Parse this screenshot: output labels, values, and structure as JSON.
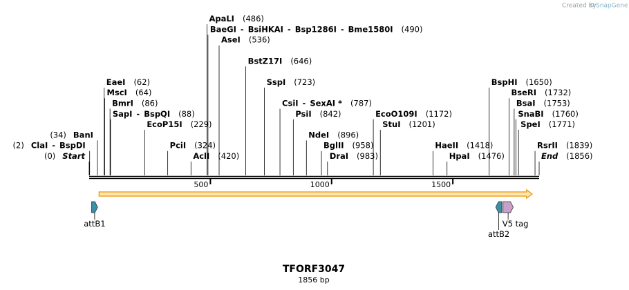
{
  "watermark": {
    "prefix": "Created by",
    "brand": "SnapGene"
  },
  "map": {
    "title": "TFORF3047",
    "length_label": "1856 bp",
    "length": 1856,
    "ticks": [
      {
        "value": 500,
        "label": "500"
      },
      {
        "value": 1000,
        "label": "1000"
      },
      {
        "value": 1500,
        "label": "1500"
      }
    ],
    "orf": {
      "start": 41,
      "end": 1827,
      "fill": "#ffe7b3",
      "stroke": "#f0a020"
    },
    "enzymes": [
      {
        "names": [
          "Start"
        ],
        "pos": "(0)",
        "at": 0,
        "row": 0,
        "side": "left",
        "italic": true
      },
      {
        "names": [
          "ClaI",
          "BspDI"
        ],
        "pos": "(2)",
        "at": 2,
        "row": 1,
        "side": "left"
      },
      {
        "names": [
          "BanI"
        ],
        "pos": "(34)",
        "at": 34,
        "row": 2,
        "side": "left"
      },
      {
        "names": [
          "EaeI"
        ],
        "pos": "(62)",
        "at": 62,
        "row": 7,
        "side": "right"
      },
      {
        "names": [
          "MscI"
        ],
        "pos": "(64)",
        "at": 64,
        "row": 6,
        "side": "right"
      },
      {
        "names": [
          "BmrI"
        ],
        "pos": "(86)",
        "at": 86,
        "row": 5,
        "side": "right"
      },
      {
        "names": [
          "SapI",
          "BspQI"
        ],
        "pos": "(88)",
        "at": 88,
        "row": 4,
        "side": "right"
      },
      {
        "names": [
          "EcoP15I"
        ],
        "pos": "(229)",
        "at": 229,
        "row": 3,
        "side": "right"
      },
      {
        "names": [
          "PciI"
        ],
        "pos": "(324)",
        "at": 324,
        "row": 1,
        "side": "right"
      },
      {
        "names": [
          "AclI"
        ],
        "pos": "(420)",
        "at": 420,
        "row": 0,
        "side": "right"
      },
      {
        "names": [
          "ApaLI"
        ],
        "pos": "(486)",
        "at": 486,
        "row": 13,
        "side": "right"
      },
      {
        "names": [
          "BaeGI",
          "BsiHKAI",
          "Bsp1286I",
          "Bme1580I"
        ],
        "pos": "(490)",
        "at": 490,
        "row": 12,
        "side": "right"
      },
      {
        "names": [
          "AseI"
        ],
        "pos": "(536)",
        "at": 536,
        "row": 11,
        "side": "right"
      },
      {
        "names": [
          "BstZ17I"
        ],
        "pos": "(646)",
        "at": 646,
        "row": 9,
        "side": "right"
      },
      {
        "names": [
          "SspI"
        ],
        "pos": "(723)",
        "at": 723,
        "row": 7,
        "side": "right"
      },
      {
        "names": [
          "CsiI",
          "SexAI *"
        ],
        "pos": "(787)",
        "at": 787,
        "row": 5,
        "side": "right"
      },
      {
        "names": [
          "PsiI"
        ],
        "pos": "(842)",
        "at": 842,
        "row": 4,
        "side": "right"
      },
      {
        "names": [
          "NdeI"
        ],
        "pos": "(896)",
        "at": 896,
        "row": 2,
        "side": "right"
      },
      {
        "names": [
          "BglII"
        ],
        "pos": "(958)",
        "at": 958,
        "row": 1,
        "side": "right"
      },
      {
        "names": [
          "DraI"
        ],
        "pos": "(983)",
        "at": 983,
        "row": 0,
        "side": "right"
      },
      {
        "names": [
          "EcoO109I"
        ],
        "pos": "(1172)",
        "at": 1172,
        "row": 4,
        "side": "right"
      },
      {
        "names": [
          "StuI"
        ],
        "pos": "(1201)",
        "at": 1201,
        "row": 3,
        "side": "right"
      },
      {
        "names": [
          "HaeII"
        ],
        "pos": "(1418)",
        "at": 1418,
        "row": 1,
        "side": "right"
      },
      {
        "names": [
          "HpaI"
        ],
        "pos": "(1476)",
        "at": 1476,
        "row": 0,
        "side": "right"
      },
      {
        "names": [
          "BspHI"
        ],
        "pos": "(1650)",
        "at": 1650,
        "row": 7,
        "side": "right"
      },
      {
        "names": [
          "BseRI"
        ],
        "pos": "(1732)",
        "at": 1732,
        "row": 6,
        "side": "right"
      },
      {
        "names": [
          "BsaI"
        ],
        "pos": "(1753)",
        "at": 1753,
        "row": 5,
        "side": "right"
      },
      {
        "names": [
          "SnaBI"
        ],
        "pos": "(1760)",
        "at": 1760,
        "row": 4,
        "side": "right"
      },
      {
        "names": [
          "SpeI"
        ],
        "pos": "(1771)",
        "at": 1771,
        "row": 3,
        "side": "right"
      },
      {
        "names": [
          "RsrII"
        ],
        "pos": "(1839)",
        "at": 1839,
        "row": 1,
        "side": "right"
      },
      {
        "names": [
          "End"
        ],
        "pos": "(1856)",
        "at": 1856,
        "row": 0,
        "side": "right",
        "italic": true
      }
    ],
    "features": [
      {
        "name": "attB1",
        "start": 10,
        "end": 35,
        "direction": "right",
        "color": "#3b8fa8",
        "label_row": 0
      },
      {
        "name": "attB2",
        "start": 1677,
        "end": 1702,
        "direction": "left",
        "color": "#3b8fa8",
        "label_row": 1
      },
      {
        "name": "V5 tag",
        "start": 1707,
        "end": 1749,
        "direction": "right",
        "color": "#c9a0c9",
        "label_row": 0
      }
    ]
  }
}
